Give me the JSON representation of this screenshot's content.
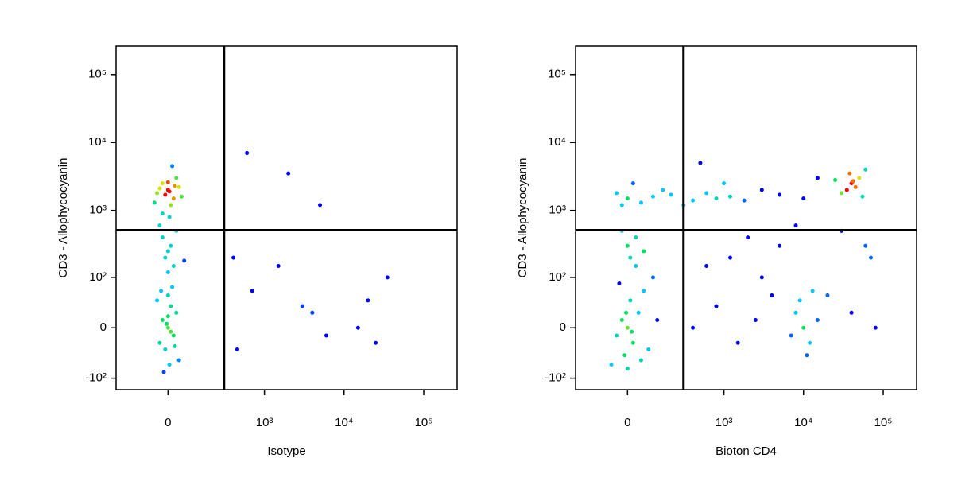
{
  "chart_data": [
    {
      "type": "scatter",
      "scale": "biexponential",
      "x_label": "Isotype",
      "y_label": "CD3 - Allophycocyanin",
      "xlim": [
        -264,
        262144
      ],
      "ylim": [
        -150,
        262144
      ],
      "xticks": [
        0,
        {
          "value": 1000,
          "label": "10³"
        },
        {
          "value": 10000,
          "label": "10⁴"
        },
        {
          "value": 100000,
          "label": "10⁵"
        }
      ],
      "yticks": [
        {
          "value": -100,
          "label": "-10²"
        },
        0,
        {
          "value": 100,
          "label": "10²"
        },
        {
          "value": 1000,
          "label": "10³"
        },
        {
          "value": 10000,
          "label": "10⁴"
        },
        {
          "value": 100000,
          "label": "10⁵"
        }
      ],
      "gates": {
        "x": 300,
        "y": 511
      },
      "colormap": [
        "#0000ff",
        "#00c8ff",
        "#00e060",
        "#e0e000",
        "#ff0000"
      ],
      "x": [
        -40,
        0,
        20,
        -20,
        40,
        10,
        -50,
        30,
        0,
        -10,
        50,
        -30,
        15,
        -20,
        5,
        25,
        0,
        -20,
        20,
        10,
        -10,
        30,
        -30,
        0,
        5,
        -40,
        40,
        15,
        -15,
        0,
        10,
        -5,
        25,
        -25,
        0,
        -10,
        10,
        -20,
        20,
        0,
        -30,
        30,
        5,
        60,
        400,
        600,
        2000,
        5000,
        4000,
        6000,
        3000,
        15000,
        25000,
        20000,
        35000,
        700,
        1500,
        450
      ],
      "y": [
        1800,
        2000,
        1500,
        2500,
        2200,
        1200,
        1300,
        3000,
        2600,
        1700,
        1600,
        2100,
        4500,
        900,
        1900,
        2300,
        0,
        10,
        -10,
        30,
        -30,
        20,
        -20,
        50,
        -60,
        40,
        -50,
        70,
        -80,
        15,
        -5,
        5,
        -25,
        60,
        120,
        200,
        300,
        400,
        150,
        250,
        600,
        500,
        800,
        180,
        200,
        7000,
        3500,
        1200,
        20,
        -10,
        30,
        0,
        -20,
        40,
        100,
        60,
        150,
        -30
      ]
    },
    {
      "type": "scatter",
      "scale": "biexponential",
      "x_label": "Bioton CD4",
      "y_label": "CD3 - Allophycocyanin",
      "xlim": [
        -264,
        262144
      ],
      "ylim": [
        -150,
        262144
      ],
      "xticks": [
        0,
        {
          "value": 1000,
          "label": "10³"
        },
        {
          "value": 10000,
          "label": "10⁴"
        },
        {
          "value": 100000,
          "label": "10⁵"
        }
      ],
      "yticks": [
        {
          "value": -100,
          "label": "-10²"
        },
        0,
        {
          "value": 100,
          "label": "10²"
        },
        {
          "value": 1000,
          "label": "10³"
        },
        {
          "value": 10000,
          "label": "10⁴"
        },
        {
          "value": 100000,
          "label": "10⁵"
        }
      ],
      "gates": {
        "x": 300,
        "y": 511
      },
      "colormap": [
        "#0000ff",
        "#00c8ff",
        "#00e060",
        "#e0e000",
        "#ff0000"
      ],
      "x": [
        0,
        -20,
        20,
        10,
        -10,
        40,
        -40,
        60,
        0,
        -30,
        80,
        120,
        -60,
        30,
        15,
        -5,
        50,
        100,
        0,
        -40,
        50,
        100,
        200,
        400,
        800,
        150,
        -20,
        600,
        1200,
        300,
        20,
        1800,
        0,
        10,
        -20,
        30,
        60,
        40000,
        35000,
        45000,
        50000,
        30000,
        42000,
        55000,
        38000,
        60000,
        25000,
        10000,
        8000,
        12000,
        9000,
        11000,
        15000,
        7000,
        13000,
        400,
        800,
        1500,
        2500,
        4000,
        600,
        1200,
        3000,
        20000,
        40000,
        80000,
        2000,
        5000,
        8000,
        30000,
        60000,
        1000,
        3000,
        5000,
        10000,
        15000,
        70000,
        500
      ],
      "y": [
        0,
        10,
        -20,
        40,
        -40,
        20,
        -10,
        60,
        -70,
        80,
        -30,
        10,
        -60,
        150,
        -5,
        20,
        -50,
        100,
        1500,
        1800,
        1300,
        1600,
        1700,
        1400,
        1500,
        2000,
        1200,
        1800,
        1600,
        1200,
        2500,
        1400,
        300,
        200,
        500,
        400,
        250,
        2500,
        2000,
        2200,
        3000,
        1800,
        2700,
        1600,
        3500,
        4000,
        2800,
        0,
        20,
        -20,
        40,
        -40,
        10,
        -10,
        60,
        0,
        30,
        -20,
        10,
        50,
        150,
        200,
        100,
        50,
        20,
        0,
        400,
        300,
        600,
        500,
        300,
        2500,
        2000,
        1700,
        1500,
        3000,
        200,
        5000
      ]
    }
  ]
}
